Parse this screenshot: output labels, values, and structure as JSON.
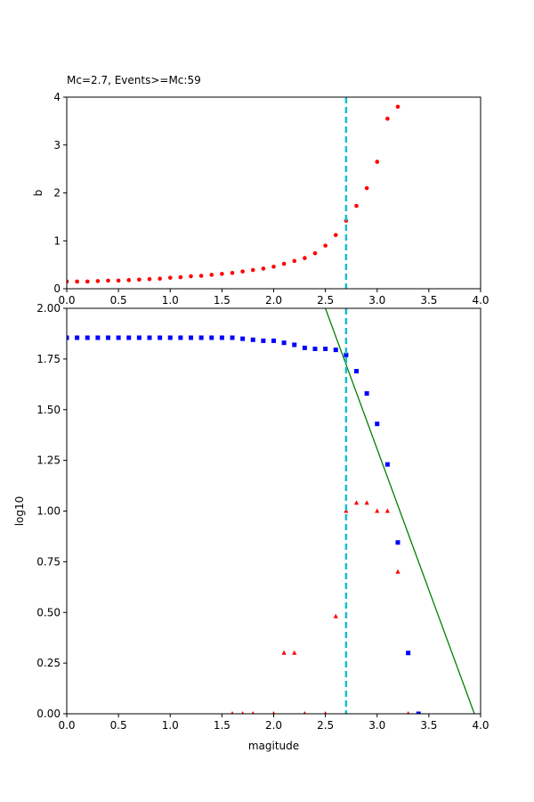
{
  "figure": {
    "title": "Mc=2.7, Events>=Mc:59"
  },
  "chart_data": [
    {
      "type": "scatter",
      "title": "Mc=2.7, Events>=Mc:59",
      "xlabel": "",
      "ylabel": "b",
      "xlim": [
        0,
        4
      ],
      "ylim": [
        0,
        4
      ],
      "xticks": [
        "0.0",
        "0.5",
        "1.0",
        "1.5",
        "2.0",
        "2.5",
        "3.0",
        "3.5",
        "4.0"
      ],
      "yticks": [
        "0",
        "1",
        "2",
        "3",
        "4"
      ],
      "grid": false,
      "mc_line": {
        "x": 2.7,
        "color": "#17becf",
        "style": "dashed"
      },
      "series": [
        {
          "marker": "circle",
          "color": "#ff0000",
          "x": [
            0.0,
            0.1,
            0.2,
            0.3,
            0.4,
            0.5,
            0.6,
            0.7,
            0.8,
            0.9,
            1.0,
            1.1,
            1.2,
            1.3,
            1.4,
            1.5,
            1.6,
            1.7,
            1.8,
            1.9,
            2.0,
            2.1,
            2.2,
            2.3,
            2.4,
            2.5,
            2.6,
            2.7,
            2.8,
            2.9,
            3.0,
            3.1,
            3.2
          ],
          "y": [
            0.15,
            0.15,
            0.15,
            0.16,
            0.17,
            0.17,
            0.18,
            0.19,
            0.2,
            0.21,
            0.23,
            0.24,
            0.26,
            0.27,
            0.29,
            0.31,
            0.33,
            0.36,
            0.39,
            0.42,
            0.46,
            0.52,
            0.58,
            0.64,
            0.74,
            0.9,
            1.12,
            1.42,
            1.73,
            2.1,
            2.65,
            3.55,
            3.8
          ]
        }
      ]
    },
    {
      "type": "scatter",
      "title": "",
      "xlabel": "magitude",
      "ylabel": "log10",
      "xlim": [
        0,
        4
      ],
      "ylim": [
        0,
        2
      ],
      "xticks": [
        "0.0",
        "0.5",
        "1.0",
        "1.5",
        "2.0",
        "2.5",
        "3.0",
        "3.5",
        "4.0"
      ],
      "yticks": [
        "0.00",
        "0.25",
        "0.50",
        "0.75",
        "1.00",
        "1.25",
        "1.50",
        "1.75",
        "2.00"
      ],
      "grid": false,
      "mc_line": {
        "x": 2.7,
        "color": "#17becf",
        "style": "dashed"
      },
      "fit_line": {
        "color": "#008000",
        "x": [
          2.5,
          3.94
        ],
        "y": [
          2.0,
          0.0
        ]
      },
      "series": [
        {
          "marker": "square",
          "color": "#0000ff",
          "x": [
            0.0,
            0.1,
            0.2,
            0.3,
            0.4,
            0.5,
            0.6,
            0.7,
            0.8,
            0.9,
            1.0,
            1.1,
            1.2,
            1.3,
            1.4,
            1.5,
            1.6,
            1.7,
            1.8,
            1.9,
            2.0,
            2.1,
            2.2,
            2.3,
            2.4,
            2.5,
            2.6,
            2.7,
            2.8,
            2.9,
            3.0,
            3.1,
            3.2,
            3.3,
            3.4
          ],
          "y": [
            1.855,
            1.855,
            1.855,
            1.855,
            1.855,
            1.855,
            1.855,
            1.855,
            1.855,
            1.855,
            1.855,
            1.855,
            1.855,
            1.855,
            1.855,
            1.855,
            1.855,
            1.85,
            1.845,
            1.84,
            1.84,
            1.83,
            1.82,
            1.805,
            1.8,
            1.8,
            1.795,
            1.77,
            1.69,
            1.58,
            1.43,
            1.23,
            0.845,
            0.3,
            0.0
          ]
        },
        {
          "marker": "triangle",
          "color": "#ff0000",
          "x": [
            1.6,
            1.7,
            1.8,
            2.0,
            2.1,
            2.2,
            2.3,
            2.5,
            2.6,
            2.7,
            2.8,
            2.9,
            3.0,
            3.1,
            3.2,
            3.3
          ],
          "y": [
            0.0,
            0.0,
            0.0,
            0.0,
            0.3,
            0.3,
            0.0,
            0.0,
            0.48,
            1.0,
            1.04,
            1.04,
            1.0,
            1.0,
            0.7,
            0.0
          ]
        }
      ]
    }
  ]
}
